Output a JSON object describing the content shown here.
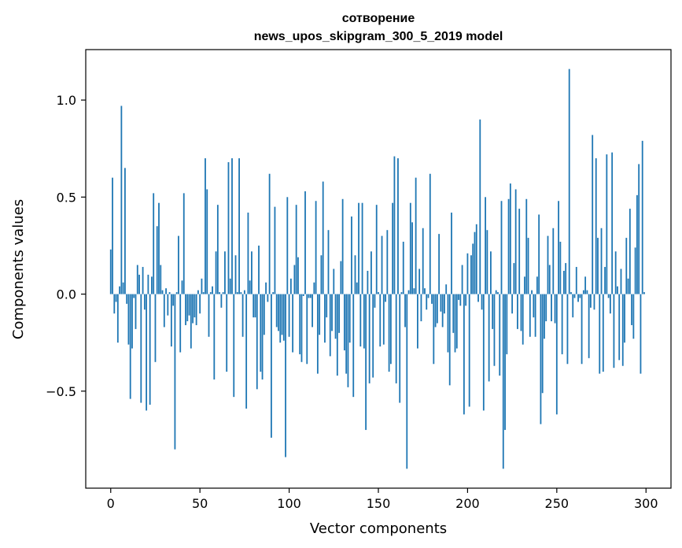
{
  "chart_data": {
    "type": "bar",
    "title": "сотворение",
    "subtitle": "news_upos_skipgram_300_5_2019 model",
    "xlabel": "Vector components",
    "ylabel": "Components values",
    "xlim": [
      -14,
      314
    ],
    "ylim": [
      -1.0,
      1.26
    ],
    "xticks": [
      0,
      50,
      100,
      150,
      200,
      250,
      300
    ],
    "xtick_labels": [
      "0",
      "50",
      "100",
      "150",
      "200",
      "250",
      "300"
    ],
    "yticks": [
      -0.5,
      0.0,
      0.5,
      1.0
    ],
    "ytick_labels": [
      "−0.5",
      "0.0",
      "0.5",
      "1.0"
    ],
    "grid": false,
    "bar_color": "#1f77b4",
    "values": [
      0.23,
      0.6,
      -0.1,
      -0.04,
      -0.25,
      0.04,
      0.97,
      0.06,
      0.65,
      -0.05,
      -0.26,
      -0.54,
      -0.28,
      -0.02,
      -0.18,
      0.15,
      0.1,
      -0.56,
      0.14,
      -0.08,
      -0.6,
      0.1,
      -0.57,
      0.09,
      0.52,
      -0.35,
      0.35,
      0.47,
      0.15,
      0.02,
      -0.17,
      0.03,
      -0.11,
      0.01,
      -0.27,
      -0.06,
      -0.8,
      0.01,
      0.3,
      -0.3,
      0.07,
      0.52,
      -0.16,
      -0.14,
      -0.11,
      -0.28,
      -0.15,
      -0.12,
      -0.16,
      0.02,
      -0.1,
      0.08,
      0.01,
      0.7,
      0.54,
      -0.22,
      0.01,
      0.04,
      -0.44,
      0.22,
      0.46,
      0.01,
      -0.07,
      0.01,
      0.22,
      -0.4,
      0.68,
      0.08,
      0.7,
      -0.53,
      0.2,
      0.01,
      0.7,
      0.01,
      -0.22,
      0.02,
      -0.59,
      0.42,
      0.07,
      0.22,
      -0.12,
      -0.12,
      -0.49,
      0.25,
      -0.4,
      -0.44,
      -0.21,
      0.06,
      -0.04,
      0.62,
      -0.74,
      0.01,
      0.45,
      -0.17,
      -0.19,
      -0.25,
      -0.21,
      -0.24,
      -0.84,
      0.5,
      -0.22,
      0.08,
      -0.3,
      0.15,
      0.46,
      0.19,
      -0.31,
      -0.35,
      -0.01,
      0.53,
      -0.36,
      -0.02,
      -0.02,
      -0.17,
      0.06,
      0.48,
      -0.41,
      -0.21,
      0.2,
      0.58,
      -0.25,
      -0.12,
      0.33,
      -0.32,
      -0.19,
      0.13,
      -0.23,
      -0.42,
      -0.2,
      0.17,
      0.49,
      -0.29,
      -0.41,
      -0.48,
      -0.25,
      0.4,
      -0.53,
      0.2,
      0.06,
      0.47,
      -0.27,
      0.47,
      -0.28,
      -0.7,
      0.12,
      -0.46,
      0.22,
      -0.43,
      -0.07,
      0.46,
      0.01,
      -0.27,
      0.3,
      -0.26,
      -0.04,
      0.33,
      -0.4,
      -0.36,
      0.47,
      0.71,
      -0.46,
      0.7,
      -0.56,
      0.01,
      0.27,
      -0.17,
      -0.9,
      0.02,
      0.47,
      0.37,
      0.03,
      0.6,
      -0.28,
      0.13,
      -0.14,
      0.34,
      0.03,
      -0.08,
      -0.02,
      0.62,
      -0.05,
      -0.36,
      -0.17,
      -0.15,
      0.31,
      -0.09,
      -0.17,
      -0.1,
      0.05,
      -0.3,
      -0.47,
      0.42,
      -0.2,
      -0.3,
      -0.28,
      -0.03,
      -0.06,
      0.15,
      -0.62,
      -0.06,
      0.21,
      -0.58,
      0.2,
      0.26,
      0.32,
      0.36,
      -0.04,
      0.9,
      -0.08,
      -0.6,
      0.5,
      0.33,
      -0.45,
      0.22,
      -0.18,
      -0.37,
      0.02,
      0.01,
      -0.42,
      0.48,
      -0.9,
      -0.7,
      -0.31,
      0.49,
      0.57,
      -0.1,
      0.16,
      0.54,
      -0.18,
      0.44,
      -0.19,
      -0.26,
      0.09,
      0.49,
      0.29,
      -0.22,
      0.02,
      -0.12,
      -0.22,
      0.09,
      0.41,
      -0.67,
      -0.51,
      -0.23,
      -0.14,
      0.3,
      0.15,
      -0.14,
      0.34,
      -0.15,
      -0.62,
      0.48,
      0.27,
      -0.31,
      0.12,
      0.16,
      -0.36,
      1.16,
      0.01,
      -0.12,
      -0.02,
      0.14,
      -0.04,
      -0.02,
      -0.36,
      0.02,
      0.09,
      0.02,
      -0.33,
      -0.07,
      0.82,
      -0.08,
      0.7,
      0.29,
      -0.41,
      0.34,
      -0.4,
      0.14,
      0.72,
      -0.02,
      -0.1,
      0.73,
      -0.38,
      0.22,
      0.04,
      -0.34,
      0.13,
      -0.37,
      -0.25,
      0.29,
      0.08,
      0.44,
      -0.16,
      -0.23,
      0.24,
      0.51,
      0.67,
      -0.41,
      0.79,
      0.01
    ]
  }
}
